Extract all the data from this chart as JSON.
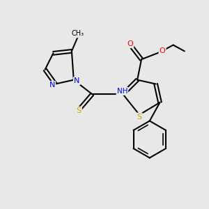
{
  "background_color": "#e8e8e8",
  "atom_colors": {
    "N": "#0000ff",
    "O": "#ff0000",
    "S": "#ccaa00",
    "C": "#000000",
    "H": "#777777"
  },
  "bond_color": "#000000",
  "figsize": [
    3.0,
    3.0
  ],
  "dpi": 100
}
